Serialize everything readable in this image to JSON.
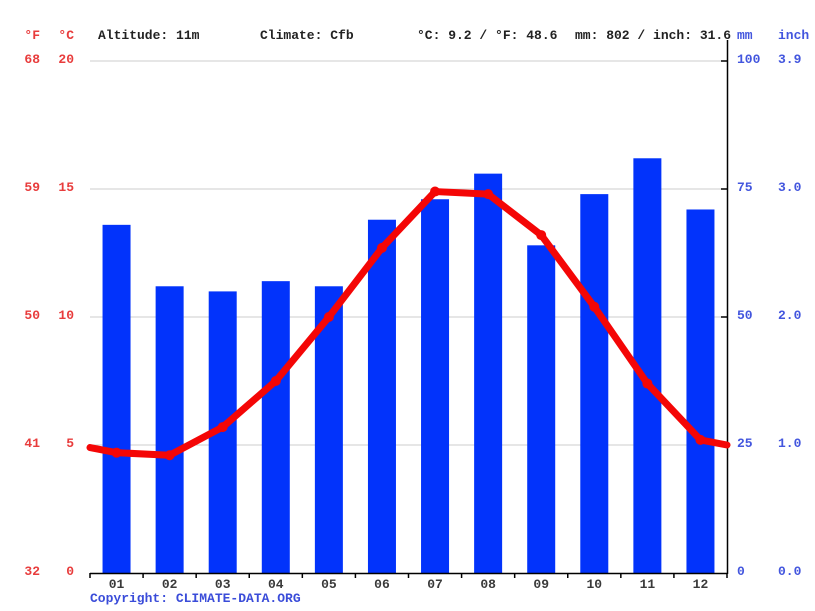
{
  "header": {
    "f_label": "°F",
    "c_label": "°C",
    "altitude": "Altitude: 11m",
    "climate": "Climate: Cfb",
    "temp_summary": "°C: 9.2 / °F: 48.6",
    "precip_summary": "mm: 802 / inch: 31.6",
    "mm_label": "mm",
    "inch_label": "inch"
  },
  "footer": {
    "copyright": "Copyright: CLIMATE-DATA.ORG"
  },
  "colors": {
    "bar_blue": "#0233fb",
    "line_red": "#f40606",
    "left_axis_red": "#e83c3c",
    "right_axis_blue": "#4356de",
    "copyright_blue": "#3a4cd9",
    "header_text": "#222222",
    "month_text": "#3a3a3a",
    "gridline": "#cccccc",
    "axis_black": "#000000"
  },
  "chart_data": {
    "type": "bar+line",
    "title": "",
    "categories": [
      "01",
      "02",
      "03",
      "04",
      "05",
      "06",
      "07",
      "08",
      "09",
      "10",
      "11",
      "12"
    ],
    "series": [
      {
        "name": "precipitation",
        "type": "bar",
        "unit": "mm",
        "values": [
          68,
          56,
          55,
          57,
          56,
          69,
          73,
          78,
          64,
          74,
          81,
          71
        ],
        "total_mm": 802,
        "total_inch": 31.6
      },
      {
        "name": "temperature",
        "type": "line",
        "unit": "°C",
        "values": [
          4.7,
          4.6,
          5.7,
          7.5,
          10.0,
          12.7,
          14.9,
          14.8,
          13.2,
          10.4,
          7.4,
          5.2
        ],
        "edge_start": 4.9,
        "edge_end": 5.0,
        "mean_c": 9.2,
        "mean_f": 48.6
      }
    ],
    "left_axis": {
      "ticks_c": [
        20,
        15,
        10,
        5,
        0
      ],
      "ticks_f": [
        68,
        59,
        50,
        41,
        32
      ],
      "range_c": [
        0,
        20
      ]
    },
    "right_axis": {
      "ticks_mm": [
        100,
        75,
        50,
        25,
        0
      ],
      "ticks_inch": [
        "3.9",
        "3.0",
        "2.0",
        "1.0",
        "0.0"
      ],
      "range_mm": [
        0,
        100
      ]
    },
    "grid": true,
    "legend_position": "none"
  }
}
